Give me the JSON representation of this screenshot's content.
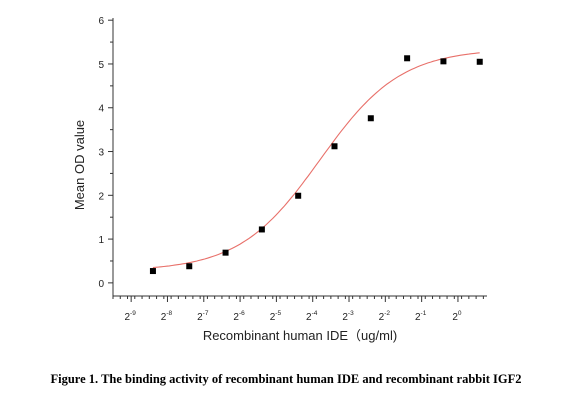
{
  "chart_data": {
    "type": "scatter",
    "title": "",
    "xlabel": "Recombinant human IDE（ug/ml)",
    "ylabel": "Mean OD value",
    "x_scale": "log2",
    "xlim": [
      -9.5,
      0.8
    ],
    "ylim": [
      -0.3,
      6.05
    ],
    "y_ticks": [
      "0",
      "1",
      "2",
      "3",
      "4",
      "5",
      "6"
    ],
    "x_ticks": [
      {
        "exp": -9,
        "base": "2",
        "sup": "-9"
      },
      {
        "exp": -8,
        "base": "2",
        "sup": "-8"
      },
      {
        "exp": -7,
        "base": "2",
        "sup": "-7"
      },
      {
        "exp": -6,
        "base": "2",
        "sup": "-6"
      },
      {
        "exp": -5,
        "base": "2",
        "sup": "-5"
      },
      {
        "exp": -4,
        "base": "2",
        "sup": "-4"
      },
      {
        "exp": -3,
        "base": "2",
        "sup": "-3"
      },
      {
        "exp": -2,
        "base": "2",
        "sup": "-2"
      },
      {
        "exp": -1,
        "base": "2",
        "sup": "-1"
      },
      {
        "exp": 0,
        "base": "2",
        "sup": "0"
      }
    ],
    "points": [
      {
        "x_exp": -8.4,
        "y": 0.27
      },
      {
        "x_exp": -7.4,
        "y": 0.38
      },
      {
        "x_exp": -6.4,
        "y": 0.69
      },
      {
        "x_exp": -5.4,
        "y": 1.22
      },
      {
        "x_exp": -4.4,
        "y": 1.99
      },
      {
        "x_exp": -3.4,
        "y": 3.12
      },
      {
        "x_exp": -2.4,
        "y": 3.76
      },
      {
        "x_exp": -1.4,
        "y": 5.13
      },
      {
        "x_exp": -0.4,
        "y": 5.06
      },
      {
        "x_exp": 0.6,
        "y": 5.05
      }
    ],
    "fit_curve": {
      "type": "sigmoid",
      "color": "#e8706a",
      "bottom": 0.27,
      "top": 5.35,
      "center_exp": -3.8,
      "slope": 0.9,
      "x_from": -8.4,
      "x_to": 0.6
    },
    "marker_color": "#000000",
    "grid": false,
    "legend": "none"
  },
  "caption": "Figure 1. The binding activity of recombinant human IDE and recombinant rabbit IGF2"
}
